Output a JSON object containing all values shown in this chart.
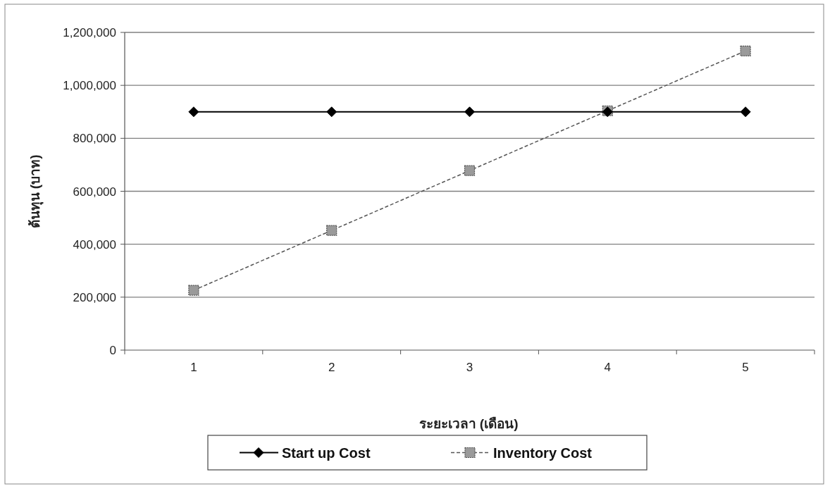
{
  "chart_data": {
    "type": "line",
    "xlabel": "ระยะเวลา (เดือน)",
    "ylabel": "ต้นทุน (บาท)",
    "categories": [
      "1",
      "2",
      "3",
      "4",
      "5"
    ],
    "series": [
      {
        "name": "Start up Cost",
        "color": "#000000",
        "marker": "diamond",
        "line_style": "solid",
        "values": [
          900000,
          900000,
          900000,
          900000,
          900000
        ]
      },
      {
        "name": "Inventory Cost",
        "color": "#555555",
        "marker": "square",
        "line_style": "dashed",
        "values": [
          226000,
          452000,
          678000,
          904000,
          1130000
        ]
      }
    ],
    "ylim": [
      0,
      1200000
    ],
    "yticks": [
      {
        "value": 0,
        "label": "0"
      },
      {
        "value": 200000,
        "label": "200,000"
      },
      {
        "value": 400000,
        "label": "400,000"
      },
      {
        "value": 600000,
        "label": "600,000"
      },
      {
        "value": 800000,
        "label": "800,000"
      },
      {
        "value": 1000000,
        "label": "1,000,000"
      },
      {
        "value": 1200000,
        "label": "1,200,000"
      }
    ],
    "grid": "y",
    "legend": "bottom"
  }
}
